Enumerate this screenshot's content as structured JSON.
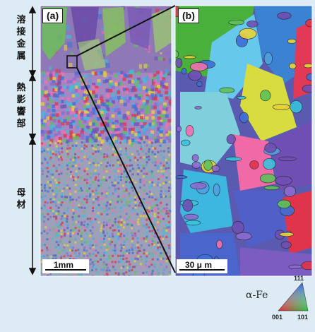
{
  "regions": [
    {
      "label": "溶接金属"
    },
    {
      "label": "熱影響部"
    },
    {
      "label": "母材"
    }
  ],
  "panels": {
    "a": {
      "label": "(a)",
      "scale_label": "1mm"
    },
    "b": {
      "label": "(b)",
      "scale_label": "30 μ m"
    }
  },
  "color_key": {
    "phase": "α-Fe",
    "corners": {
      "top": "111",
      "left": "001",
      "right": "101"
    }
  },
  "colors": {
    "background": "#dcebf4",
    "weld_metal": "#8f78b6",
    "haz": "#a486c0",
    "base_metal": "#9aa1b8",
    "grain_red": "#e0344a",
    "grain_green": "#5ec25a",
    "grain_blue": "#3e6fd6",
    "grain_cyan": "#39c2dc",
    "grain_yellow": "#e9d23a",
    "grain_purple": "#6f4fb4"
  }
}
